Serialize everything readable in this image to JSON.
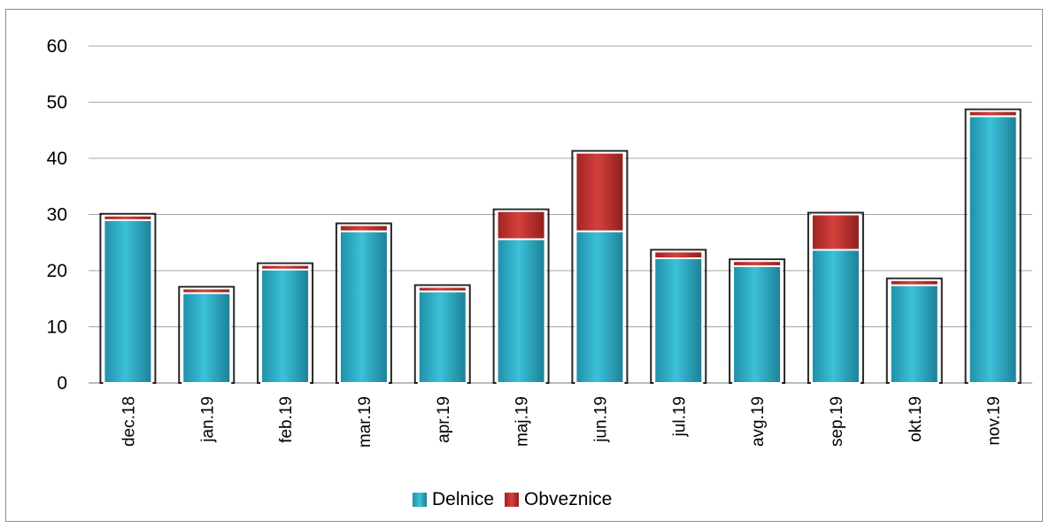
{
  "chart_data": {
    "type": "bar",
    "stacked": true,
    "categories": [
      "dec.18",
      "jan.19",
      "feb.19",
      "mar.19",
      "apr.19",
      "maj.19",
      "jun.19",
      "jul.19",
      "avg.19",
      "sep.19",
      "okt.19",
      "nov.19"
    ],
    "series": [
      {
        "name": "Delnice",
        "color": "#2aaac4",
        "values": [
          29,
          16,
          20.2,
          27,
          16.3,
          25.6,
          27,
          22.2,
          20.8,
          23.7,
          17.4,
          47.5
        ]
      },
      {
        "name": "Obveznice",
        "color": "#c0312f",
        "values": [
          0.8,
          0.8,
          0.8,
          1.1,
          0.8,
          5.0,
          14.0,
          1.2,
          0.9,
          6.3,
          0.9,
          0.9
        ]
      }
    ],
    "y_ticks": [
      "0",
      "10",
      "20",
      "30",
      "40",
      "50",
      "60"
    ],
    "ylim": [
      0,
      60
    ],
    "title": "",
    "xlabel": "",
    "ylabel": "",
    "grid": true,
    "legend_position": "bottom"
  }
}
